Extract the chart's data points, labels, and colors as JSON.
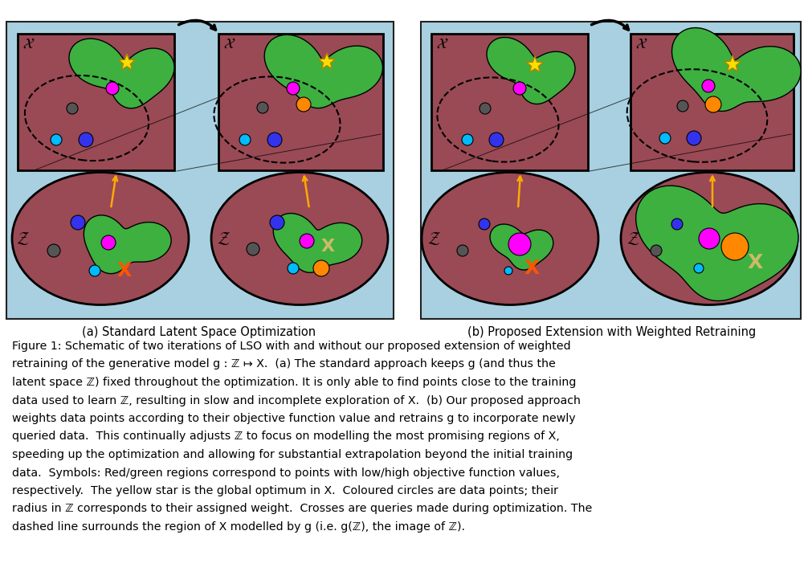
{
  "bg_color": "#a8d0e0",
  "panel_bg": "#9a4a55",
  "green_blob": "#3db040",
  "arrow_orange": "#ffaa00",
  "star_color": "#ffdd00",
  "circle_magenta": "#ff00ff",
  "circle_blue": "#3333ee",
  "circle_cyan": "#00bbff",
  "circle_gray": "#555555",
  "circle_orange": "#ff8800",
  "cross_orange": "#ff5500",
  "cross_tan": "#ccbb66",
  "caption_a": "(a) Standard Latent Space Optimization",
  "caption_b": "(b) Proposed Extension with Weighted Retraining",
  "text_lines": [
    "Figure 1: Schematic of two iterations of LSO with and without our proposed extension of weighted",
    "retraining of the generative model g : ℤ ↦ Χ.  (a) The standard approach keeps g (and thus the",
    "latent space ℤ) fixed throughout the optimization. It is only able to find points close to the training",
    "data used to learn ℤ, resulting in slow and incomplete exploration of Χ.  (b) Our proposed approach",
    "weights data points according to their objective function value and retrains g to incorporate newly",
    "queried data.  This continually adjusts ℤ to focus on modelling the most promising regions of Χ,",
    "speeding up the optimization and allowing for substantial extrapolation beyond the initial training",
    "data.  Symbols: Red/green regions correspond to points with low/high objective function values,",
    "respectively.  The yellow star is the global optimum in Χ.  Coloured circles are data points; their",
    "radius in ℤ corresponds to their assigned weight.  Crosses are queries made during optimization. The",
    "dashed line surrounds the region of Χ modelled by g (i.e. g(ℤ), the image of ℤ)."
  ]
}
